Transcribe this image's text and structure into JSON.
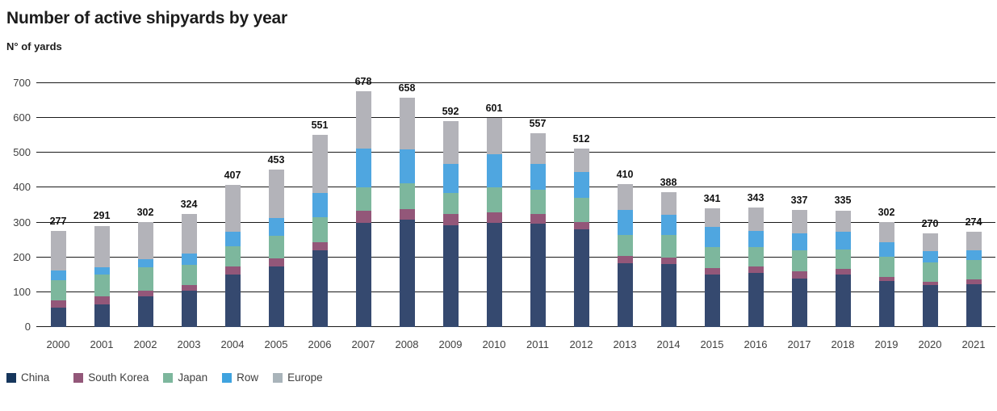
{
  "header": {
    "title": "Number of active shipyards by year",
    "subtitle": "N° of yards"
  },
  "colors": {
    "china": "#35496f",
    "south_korea": "#935779",
    "japan": "#7db79d",
    "row": "#4fa6e0",
    "europe": "#b3b3b9",
    "gridline": "#1a1a1a",
    "axis_text": "#404040",
    "label_text": "#111111"
  },
  "chart_data": {
    "type": "bar",
    "stacked": true,
    "title": "Number of active shipyards by year",
    "ylabel": "N° of yards",
    "xlabel": "",
    "ylim": [
      0,
      700
    ],
    "yticks": [
      0,
      100,
      200,
      300,
      400,
      500,
      600,
      700
    ],
    "grid": true,
    "legend_position": "bottom",
    "categories": [
      "2000",
      "2001",
      "2002",
      "2003",
      "2004",
      "2005",
      "2006",
      "2007",
      "2008",
      "2009",
      "2010",
      "2011",
      "2012",
      "2013",
      "2014",
      "2015",
      "2016",
      "2017",
      "2018",
      "2019",
      "2020",
      "2021"
    ],
    "series": [
      {
        "name": "China",
        "color": "#35496f",
        "values": [
          56,
          66,
          89,
          104,
          150,
          173,
          220,
          300,
          308,
          291,
          300,
          296,
          281,
          183,
          181,
          150,
          155,
          139,
          150,
          132,
          121,
          124
        ]
      },
      {
        "name": "South Korea",
        "color": "#935779",
        "values": [
          20,
          21,
          15,
          17,
          23,
          23,
          23,
          33,
          31,
          33,
          29,
          28,
          21,
          20,
          19,
          19,
          18,
          20,
          16,
          12,
          10,
          12
        ]
      },
      {
        "name": "Japan",
        "color": "#7db79d",
        "values": [
          58,
          64,
          67,
          57,
          58,
          66,
          72,
          67,
          74,
          61,
          71,
          71,
          68,
          61,
          64,
          61,
          57,
          62,
          57,
          58,
          55,
          56
        ]
      },
      {
        "name": "Row",
        "color": "#4fa6e0",
        "values": [
          28,
          21,
          23,
          33,
          43,
          50,
          70,
          113,
          98,
          84,
          95,
          74,
          74,
          73,
          58,
          57,
          45,
          48,
          51,
          41,
          31,
          28
        ]
      },
      {
        "name": "Europe",
        "color": "#b3b3b9",
        "values": [
          115,
          119,
          108,
          113,
          133,
          141,
          166,
          165,
          147,
          123,
          106,
          88,
          68,
          73,
          66,
          54,
          68,
          68,
          61,
          59,
          53,
          54
        ]
      }
    ],
    "totals": [
      277,
      291,
      302,
      324,
      407,
      453,
      551,
      678,
      658,
      592,
      601,
      557,
      512,
      410,
      388,
      341,
      343,
      337,
      335,
      302,
      270,
      274
    ]
  },
  "legend": {
    "items": [
      {
        "label": "China",
        "color": "#16365c"
      },
      {
        "label": "South Korea",
        "color": "#935779"
      },
      {
        "label": "Japan",
        "color": "#7db79d"
      },
      {
        "label": "Row",
        "color": "#3fa3df"
      },
      {
        "label": "Europe",
        "color": "#a9b4ba"
      }
    ]
  }
}
